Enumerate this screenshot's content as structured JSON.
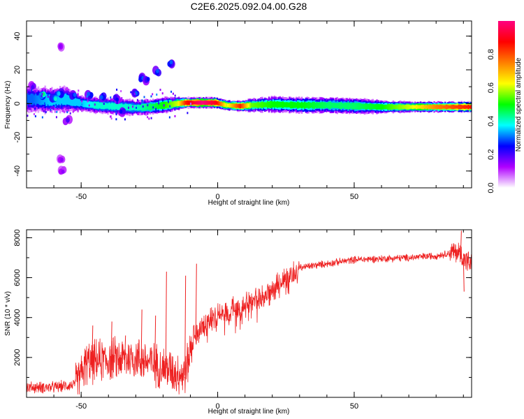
{
  "title": "C2E6.2025.092.04.00.G28",
  "chart_data": [
    {
      "type": "heatmap",
      "xlabel": "Height of straight line (km)",
      "ylabel": "Frequency (Hz)",
      "xlim": [
        -70,
        93
      ],
      "ylim": [
        -50,
        49
      ],
      "xticks": [
        -50,
        0,
        50
      ],
      "yticks": [
        -40,
        -20,
        0,
        20,
        40
      ],
      "colorbar": {
        "label": "Normalized spectral amplitude",
        "range": [
          0,
          1
        ],
        "ticks": [
          "0.0",
          "0.2",
          "0.4",
          "0.6",
          "0.8"
        ],
        "tick_values": [
          0,
          0.2,
          0.4,
          0.6,
          0.8
        ],
        "colormap": [
          "#ffffff",
          "#b000ff",
          "#0000ff",
          "#00ffff",
          "#00ff00",
          "#ffff00",
          "#ff7f00",
          "#ff0000",
          "#ff0080"
        ]
      },
      "ridge": {
        "comment_free": true,
        "points": [
          {
            "x": -68,
            "f": 2.5,
            "a": 0.3,
            "spread": 5
          },
          {
            "x": -62,
            "f": 2,
            "a": 0.35,
            "spread": 5
          },
          {
            "x": -56,
            "f": 2.5,
            "a": 0.35,
            "spread": 5
          },
          {
            "x": -50,
            "f": 0,
            "a": 0.35,
            "spread": 3
          },
          {
            "x": -45,
            "f": -1,
            "a": 0.4,
            "spread": 3
          },
          {
            "x": -40,
            "f": -1.5,
            "a": 0.4,
            "spread": 3
          },
          {
            "x": -35,
            "f": -2,
            "a": 0.4,
            "spread": 3
          },
          {
            "x": -30,
            "f": -2.5,
            "a": 0.4,
            "spread": 3
          },
          {
            "x": -25,
            "f": -2,
            "a": 0.45,
            "spread": 3
          },
          {
            "x": -20,
            "f": -1,
            "a": 0.5,
            "spread": 3
          },
          {
            "x": -15,
            "f": 0,
            "a": 0.6,
            "spread": 2.5
          },
          {
            "x": -12,
            "f": 0.5,
            "a": 0.85,
            "spread": 2
          },
          {
            "x": -6,
            "f": 0.5,
            "a": 1.0,
            "spread": 2
          },
          {
            "x": -1,
            "f": 0.5,
            "a": 0.9,
            "spread": 2
          },
          {
            "x": 3,
            "f": -1,
            "a": 0.6,
            "spread": 2
          },
          {
            "x": 8,
            "f": -1.5,
            "a": 0.85,
            "spread": 2
          },
          {
            "x": 12,
            "f": -1,
            "a": 0.55,
            "spread": 2.5
          },
          {
            "x": 20,
            "f": -0.5,
            "a": 0.5,
            "spread": 3
          },
          {
            "x": 30,
            "f": -1,
            "a": 0.5,
            "spread": 3
          },
          {
            "x": 40,
            "f": -1,
            "a": 0.45,
            "spread": 3
          },
          {
            "x": 50,
            "f": -1.5,
            "a": 0.45,
            "spread": 3
          },
          {
            "x": 60,
            "f": -2,
            "a": 0.5,
            "spread": 2.5
          },
          {
            "x": 70,
            "f": -2,
            "a": 0.6,
            "spread": 2
          },
          {
            "x": 80,
            "f": -2,
            "a": 0.75,
            "spread": 2
          },
          {
            "x": 92,
            "f": -2,
            "a": 0.85,
            "spread": 2
          }
        ]
      },
      "blobs": [
        {
          "x": -64,
          "f": 5,
          "a": 0.45
        },
        {
          "x": -60,
          "f": 3,
          "a": 0.4
        },
        {
          "x": -58,
          "f": 6,
          "a": 0.35
        },
        {
          "x": -53,
          "f": 5,
          "a": 0.3
        },
        {
          "x": -47,
          "f": 5,
          "a": 0.3
        },
        {
          "x": -42,
          "f": 4,
          "a": 0.3
        },
        {
          "x": -37,
          "f": 3,
          "a": 0.25
        },
        {
          "x": -28,
          "f": 15,
          "a": 0.3
        },
        {
          "x": -26,
          "f": 14,
          "a": 0.25
        },
        {
          "x": -22,
          "f": 19,
          "a": 0.3
        },
        {
          "x": -17,
          "f": 24,
          "a": 0.3
        },
        {
          "x": -30,
          "f": 6,
          "a": 0.3
        },
        {
          "x": -57,
          "f": 34,
          "a": 0.15
        },
        {
          "x": -57,
          "f": -33,
          "a": 0.15
        },
        {
          "x": -57,
          "f": -40,
          "a": 0.15
        },
        {
          "x": -68,
          "f": 10,
          "a": 0.2
        },
        {
          "x": -55,
          "f": -10,
          "a": 0.2
        },
        {
          "x": -35,
          "f": -5,
          "a": 0.25
        }
      ]
    },
    {
      "type": "line",
      "xlabel": "Height of straight line (km)",
      "ylabel": "SNR (10 * v/v)",
      "xlim": [
        -70,
        93
      ],
      "ylim": [
        0,
        8400
      ],
      "xticks": [
        -50,
        0,
        50
      ],
      "yticks": [
        2000,
        4000,
        6000,
        8000
      ],
      "series": [
        {
          "color": "#ee2020",
          "trend": [
            {
              "x": -70,
              "y": 500
            },
            {
              "x": -60,
              "y": 500
            },
            {
              "x": -52,
              "y": 650
            },
            {
              "x": -48,
              "y": 1700
            },
            {
              "x": -40,
              "y": 1900
            },
            {
              "x": -30,
              "y": 2000
            },
            {
              "x": -20,
              "y": 1500
            },
            {
              "x": -12,
              "y": 1100
            },
            {
              "x": -9,
              "y": 3000
            },
            {
              "x": -5,
              "y": 3600
            },
            {
              "x": 0,
              "y": 4100
            },
            {
              "x": 5,
              "y": 4400
            },
            {
              "x": 10,
              "y": 4600
            },
            {
              "x": 15,
              "y": 5000
            },
            {
              "x": 20,
              "y": 5400
            },
            {
              "x": 25,
              "y": 6000
            },
            {
              "x": 30,
              "y": 6500
            },
            {
              "x": 40,
              "y": 6700
            },
            {
              "x": 50,
              "y": 6900
            },
            {
              "x": 60,
              "y": 6950
            },
            {
              "x": 70,
              "y": 7000
            },
            {
              "x": 80,
              "y": 7100
            },
            {
              "x": 88,
              "y": 7300
            },
            {
              "x": 93,
              "y": 6600
            }
          ],
          "spikes": [
            {
              "x": -46,
              "y": 3600
            },
            {
              "x": -39,
              "y": 3800
            },
            {
              "x": -34,
              "y": 3100
            },
            {
              "x": -28,
              "y": 4400
            },
            {
              "x": -23,
              "y": 4100
            },
            {
              "x": -19,
              "y": 6300
            },
            {
              "x": -12,
              "y": 6100
            },
            {
              "x": -8,
              "y": 6700
            },
            {
              "x": 89,
              "y": 8350
            },
            {
              "x": 90,
              "y": 5300
            }
          ]
        }
      ]
    }
  ]
}
